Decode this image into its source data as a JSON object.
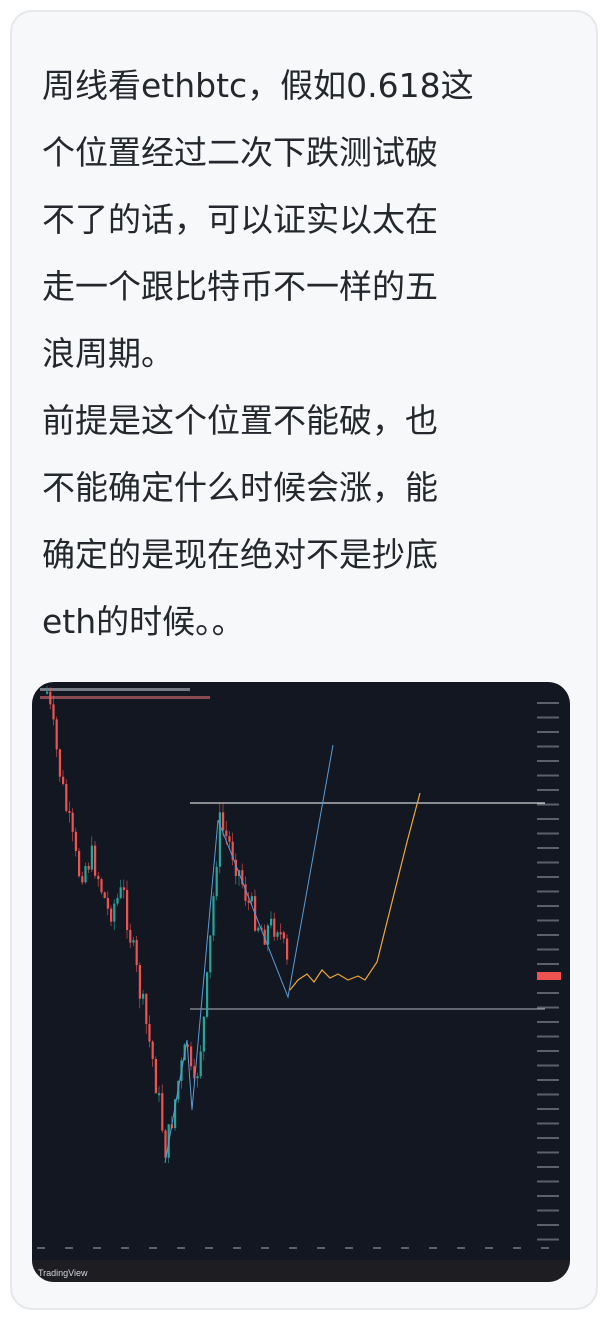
{
  "post": {
    "lines": [
      "周线看ethbtc，假如0.618这",
      "个位置经过二次下跌测试破",
      "不了的话，可以证实以太在",
      "走一个跟比特币不一样的五",
      "浪周期。",
      "前提是这个位置不能破，也",
      "不能确定什么时候会涨，能",
      "确定的是现在绝对不是抄底",
      "eth的时候。。"
    ]
  },
  "image": {
    "watermark": "TradingView",
    "colors": {
      "background": "#131722",
      "up": "#26a69a",
      "down": "#ef5350",
      "wave": "#5b9bd5",
      "projection": "#f0a830",
      "level": "#ffffff"
    }
  }
}
